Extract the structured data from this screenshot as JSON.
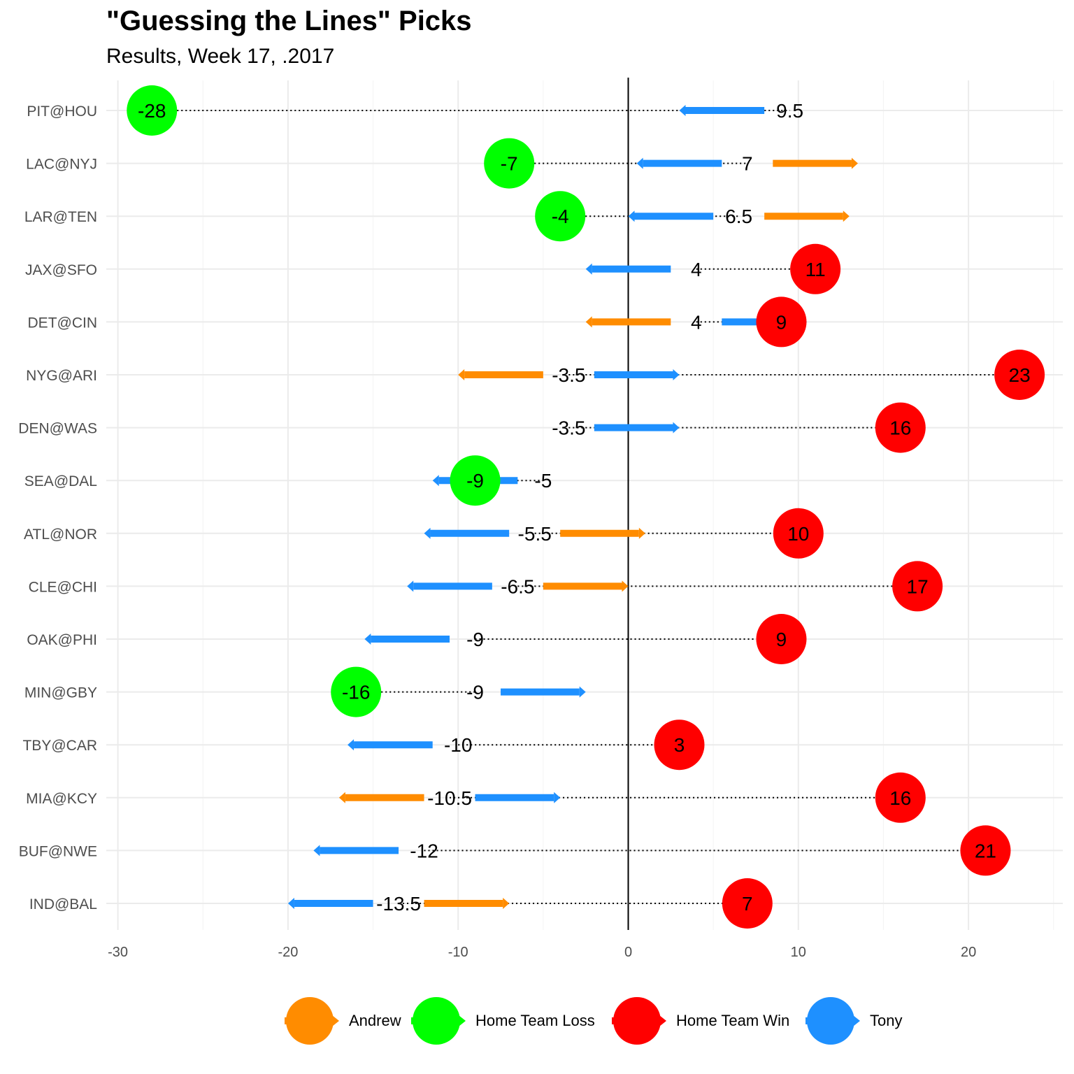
{
  "title": "\"Guessing the Lines\" Picks",
  "subtitle": "Results, Week 17, .2017",
  "colors": {
    "Andrew": "#FF8C00",
    "Home Team Loss": "#00FF00",
    "Home Team Win": "#FF0000",
    "Tony": "#1E90FF"
  },
  "legend": [
    "Andrew",
    "Home Team Loss",
    "Home Team Win",
    "Tony"
  ],
  "chart_data": {
    "type": "dumbbell",
    "title": "\"Guessing the Lines\" Picks",
    "subtitle": "Results, Week 17, .2017",
    "xlim": [
      -30,
      25
    ],
    "xticks": [
      -30,
      -20,
      -10,
      0,
      10,
      20
    ],
    "grid": true,
    "legend_position": "bottom",
    "games": [
      {
        "game": "PIT@HOU",
        "line": 9.5,
        "line_label": "9.5",
        "result": -28,
        "outcome": "Home Team Loss",
        "picks": [
          {
            "who": "Tony",
            "from": 8,
            "to": 3
          }
        ]
      },
      {
        "game": "LAC@NYJ",
        "line": 7,
        "line_label": "7",
        "result": -7,
        "outcome": "Home Team Loss",
        "picks": [
          {
            "who": "Tony",
            "from": 5.5,
            "to": 0.5
          },
          {
            "who": "Andrew",
            "from": 8.5,
            "to": 13.5
          }
        ]
      },
      {
        "game": "LAR@TEN",
        "line": 6.5,
        "line_label": "6.5",
        "result": -4,
        "outcome": "Home Team Loss",
        "picks": [
          {
            "who": "Tony",
            "from": 5,
            "to": 0
          },
          {
            "who": "Andrew",
            "from": 8,
            "to": 13
          }
        ]
      },
      {
        "game": "JAX@SFO",
        "line": 4,
        "line_label": "4",
        "result": 11,
        "outcome": "Home Team Win",
        "picks": [
          {
            "who": "Tony",
            "from": 2.5,
            "to": -2.5
          }
        ]
      },
      {
        "game": "DET@CIN",
        "line": 4,
        "line_label": "4",
        "result": 9,
        "outcome": "Home Team Win",
        "picks": [
          {
            "who": "Andrew",
            "from": 2.5,
            "to": -2.5
          },
          {
            "who": "Tony",
            "from": 5.5,
            "to": 10.5
          }
        ]
      },
      {
        "game": "NYG@ARI",
        "line": -3.5,
        "line_label": "-3.5",
        "result": 23,
        "outcome": "Home Team Win",
        "picks": [
          {
            "who": "Andrew",
            "from": -5,
            "to": -10
          },
          {
            "who": "Tony",
            "from": -2,
            "to": 3
          }
        ]
      },
      {
        "game": "DEN@WAS",
        "line": -3.5,
        "line_label": "-3.5",
        "result": 16,
        "outcome": "Home Team Win",
        "picks": [
          {
            "who": "Tony",
            "from": -2,
            "to": 3
          }
        ]
      },
      {
        "game": "SEA@DAL",
        "line": -5,
        "line_label": "-5",
        "result": -9,
        "outcome": "Home Team Loss",
        "picks": [
          {
            "who": "Tony",
            "from": -6.5,
            "to": -11.5
          }
        ]
      },
      {
        "game": "ATL@NOR",
        "line": -5.5,
        "line_label": "-5.5",
        "result": 10,
        "outcome": "Home Team Win",
        "picks": [
          {
            "who": "Tony",
            "from": -7,
            "to": -12
          },
          {
            "who": "Andrew",
            "from": -4,
            "to": 1
          }
        ]
      },
      {
        "game": "CLE@CHI",
        "line": -6.5,
        "line_label": "-6.5",
        "result": 17,
        "outcome": "Home Team Win",
        "picks": [
          {
            "who": "Tony",
            "from": -8,
            "to": -13
          },
          {
            "who": "Andrew",
            "from": -5,
            "to": 0
          }
        ]
      },
      {
        "game": "OAK@PHI",
        "line": -9,
        "line_label": "-9",
        "result": 9,
        "outcome": "Home Team Win",
        "picks": [
          {
            "who": "Tony",
            "from": -10.5,
            "to": -15.5
          }
        ]
      },
      {
        "game": "MIN@GBY",
        "line": -9,
        "line_label": "-9",
        "result": -16,
        "outcome": "Home Team Loss",
        "picks": [
          {
            "who": "Tony",
            "from": -7.5,
            "to": -2.5
          }
        ]
      },
      {
        "game": "TBY@CAR",
        "line": -10,
        "line_label": "-10",
        "result": 3,
        "outcome": "Home Team Win",
        "picks": [
          {
            "who": "Tony",
            "from": -11.5,
            "to": -16.5
          }
        ]
      },
      {
        "game": "MIA@KCY",
        "line": -10.5,
        "line_label": "-10.5",
        "result": 16,
        "outcome": "Home Team Win",
        "picks": [
          {
            "who": "Andrew",
            "from": -12,
            "to": -17
          },
          {
            "who": "Tony",
            "from": -9,
            "to": -4
          }
        ]
      },
      {
        "game": "BUF@NWE",
        "line": -12,
        "line_label": "-12",
        "result": 21,
        "outcome": "Home Team Win",
        "picks": [
          {
            "who": "Tony",
            "from": -13.5,
            "to": -18.5
          }
        ]
      },
      {
        "game": "IND@BAL",
        "line": -13.5,
        "line_label": "-13.5",
        "result": 7,
        "outcome": "Home Team Win",
        "picks": [
          {
            "who": "Tony",
            "from": -15,
            "to": -20
          },
          {
            "who": "Andrew",
            "from": -12,
            "to": -7
          }
        ]
      }
    ]
  }
}
